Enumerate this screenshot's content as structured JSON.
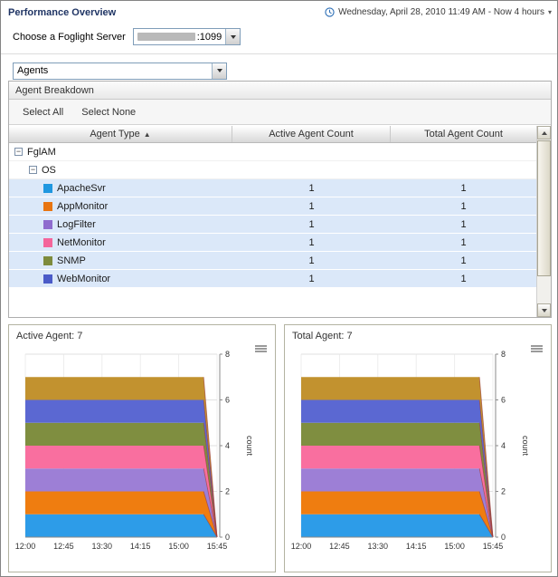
{
  "header": {
    "title": "Performance Overview",
    "time_range": "Wednesday, April 28, 2010 11:49 AM - Now 4 hours",
    "caret": "▾"
  },
  "server": {
    "label": "Choose a Foglight Server",
    "value_suffix": ":1099"
  },
  "view_select": {
    "value": "Agents"
  },
  "agent_breakdown": {
    "title": "Agent Breakdown",
    "select_all": "Select All",
    "select_none": "Select None",
    "columns": [
      "Agent Type",
      "Active Agent Count",
      "Total Agent Count"
    ],
    "sort_indicator": "▲",
    "tree": [
      {
        "label": "FglAM",
        "toggle": "−"
      },
      {
        "label": "OS",
        "toggle": "−"
      }
    ],
    "rows": [
      {
        "label": "ApacheSvr",
        "color": "#1f97e0",
        "active": 1,
        "total": 1
      },
      {
        "label": "AppMonitor",
        "color": "#e87511",
        "active": 1,
        "total": 1
      },
      {
        "label": "LogFilter",
        "color": "#8f6cce",
        "active": 1,
        "total": 1
      },
      {
        "label": "NetMonitor",
        "color": "#f4659b",
        "active": 1,
        "total": 1
      },
      {
        "label": "SNMP",
        "color": "#7d8b3d",
        "active": 1,
        "total": 1
      },
      {
        "label": "WebMonitor",
        "color": "#4b5bc8",
        "active": 1,
        "total": 1
      }
    ]
  },
  "chart_data": [
    {
      "type": "area",
      "stacked": true,
      "title": "Active Agent: 7",
      "x_ticks": [
        "12:00",
        "12:45",
        "13:30",
        "14:15",
        "15:00",
        "15:45"
      ],
      "ylabel": "count",
      "ylim": [
        0,
        8
      ],
      "yticks": [
        0,
        2,
        4,
        6,
        8
      ],
      "series": [
        {
          "name": "ApacheSvr",
          "color": "#2d9ce8",
          "values": [
            1,
            1,
            1,
            1,
            1,
            1
          ]
        },
        {
          "name": "AppMonitor",
          "color": "#ef7d10",
          "values": [
            1,
            1,
            1,
            1,
            1,
            1
          ]
        },
        {
          "name": "LogFilter",
          "color": "#9d7fd6",
          "values": [
            1,
            1,
            1,
            1,
            1,
            1
          ]
        },
        {
          "name": "NetMonitor",
          "color": "#f96f9f",
          "values": [
            1,
            1,
            1,
            1,
            1,
            1
          ]
        },
        {
          "name": "SNMP",
          "color": "#7f8e40",
          "values": [
            1,
            1,
            1,
            1,
            1,
            1
          ]
        },
        {
          "name": "WebMonitor",
          "color": "#5b68d2",
          "values": [
            1,
            1,
            1,
            1,
            1,
            1
          ]
        },
        {
          "name": "FglAM",
          "color": "#c2922f",
          "values": [
            1,
            1,
            1,
            1,
            1,
            1
          ]
        }
      ]
    },
    {
      "type": "area",
      "stacked": true,
      "title": "Total Agent: 7",
      "x_ticks": [
        "12:00",
        "12:45",
        "13:30",
        "14:15",
        "15:00",
        "15:45"
      ],
      "ylabel": "count",
      "ylim": [
        0,
        8
      ],
      "yticks": [
        0,
        2,
        4,
        6,
        8
      ],
      "series": [
        {
          "name": "ApacheSvr",
          "color": "#2d9ce8",
          "values": [
            1,
            1,
            1,
            1,
            1,
            1
          ]
        },
        {
          "name": "AppMonitor",
          "color": "#ef7d10",
          "values": [
            1,
            1,
            1,
            1,
            1,
            1
          ]
        },
        {
          "name": "LogFilter",
          "color": "#9d7fd6",
          "values": [
            1,
            1,
            1,
            1,
            1,
            1
          ]
        },
        {
          "name": "NetMonitor",
          "color": "#f96f9f",
          "values": [
            1,
            1,
            1,
            1,
            1,
            1
          ]
        },
        {
          "name": "SNMP",
          "color": "#7f8e40",
          "values": [
            1,
            1,
            1,
            1,
            1,
            1
          ]
        },
        {
          "name": "WebMonitor",
          "color": "#5b68d2",
          "values": [
            1,
            1,
            1,
            1,
            1,
            1
          ]
        },
        {
          "name": "FglAM",
          "color": "#c2922f",
          "values": [
            1,
            1,
            1,
            1,
            1,
            1
          ]
        }
      ]
    }
  ]
}
